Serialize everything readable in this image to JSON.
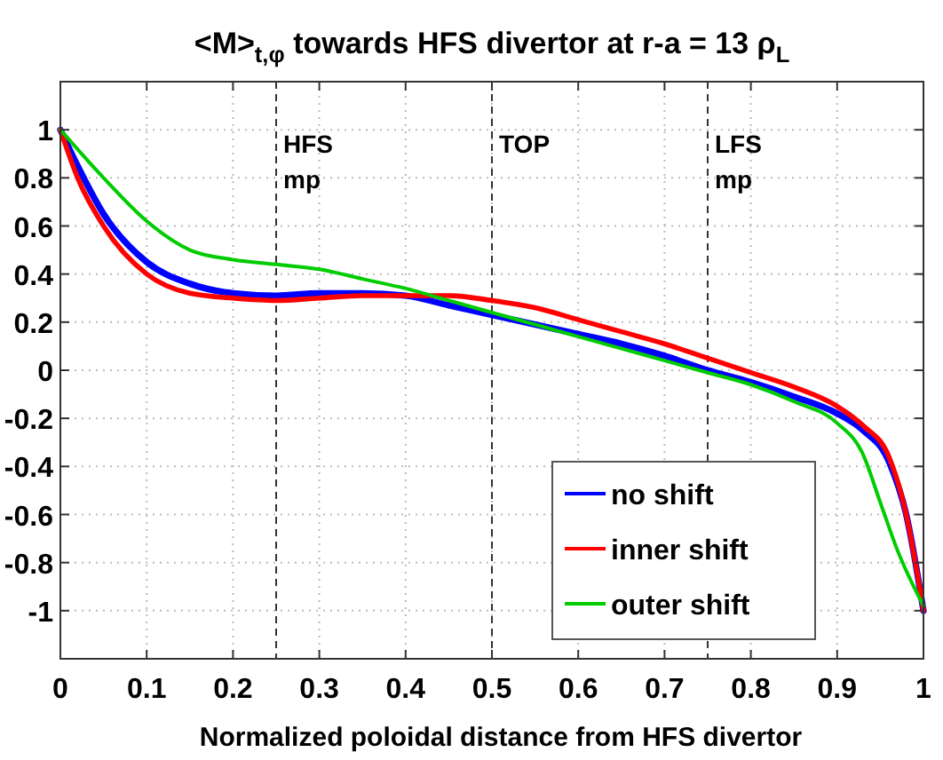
{
  "chart_data": {
    "type": "line",
    "title": "<M>$_{t,φ}$ towards HFS divertor at r-a = 13 ρ$_{L}$",
    "xlabel": "Normalized poloidal distance from HFS divertor",
    "xlim": [
      0,
      1
    ],
    "xticks": [
      0,
      0.1,
      0.2,
      0.3,
      0.4,
      0.5,
      0.6,
      0.7,
      0.8,
      0.9,
      1
    ],
    "ylim": [
      -1.2,
      1.2
    ],
    "yticks": [
      -1,
      -0.8,
      -0.6,
      -0.4,
      -0.2,
      0,
      0.2,
      0.4,
      0.6,
      0.8,
      1
    ],
    "grid": true,
    "legend": "bottom right",
    "line_style": "solid",
    "ref_lines": [
      {
        "axis": "x",
        "value": 0.25,
        "label": "HFS\nmp",
        "line_style": "dashed"
      },
      {
        "axis": "x",
        "value": 0.5,
        "label": "TOP",
        "line_style": "dashed"
      },
      {
        "axis": "x",
        "value": 0.75,
        "label": "LFS\nmp",
        "line_style": "dashed"
      }
    ],
    "series": [
      {
        "name": "no shift",
        "color": "#0000ff",
        "x": [
          0,
          0.02,
          0.05,
          0.1,
          0.15,
          0.2,
          0.25,
          0.3,
          0.35,
          0.4,
          0.45,
          0.5,
          0.55,
          0.6,
          0.65,
          0.7,
          0.75,
          0.8,
          0.85,
          0.9,
          0.93,
          0.96,
          0.98,
          1
        ],
        "values": [
          1,
          0.85,
          0.65,
          0.45,
          0.36,
          0.32,
          0.31,
          0.32,
          0.32,
          0.31,
          0.27,
          0.23,
          0.19,
          0.15,
          0.11,
          0.06,
          0,
          -0.05,
          -0.11,
          -0.18,
          -0.25,
          -0.38,
          -0.6,
          -1
        ]
      },
      {
        "name": "inner shift",
        "color": "#ff0000",
        "x": [
          0,
          0.02,
          0.05,
          0.1,
          0.15,
          0.2,
          0.25,
          0.3,
          0.35,
          0.4,
          0.45,
          0.5,
          0.55,
          0.6,
          0.65,
          0.7,
          0.75,
          0.8,
          0.85,
          0.9,
          0.93,
          0.96,
          0.98,
          1
        ],
        "values": [
          1,
          0.8,
          0.6,
          0.4,
          0.32,
          0.3,
          0.29,
          0.3,
          0.31,
          0.31,
          0.31,
          0.29,
          0.26,
          0.21,
          0.16,
          0.11,
          0.05,
          -0.01,
          -0.07,
          -0.15,
          -0.23,
          -0.36,
          -0.6,
          -1
        ]
      },
      {
        "name": "outer shift",
        "color": "#00cc00",
        "x": [
          0,
          0.05,
          0.1,
          0.15,
          0.2,
          0.25,
          0.3,
          0.35,
          0.4,
          0.45,
          0.5,
          0.55,
          0.6,
          0.65,
          0.7,
          0.75,
          0.8,
          0.85,
          0.9,
          0.93,
          0.95,
          0.97,
          1
        ],
        "values": [
          1,
          0.8,
          0.62,
          0.5,
          0.46,
          0.44,
          0.42,
          0.38,
          0.34,
          0.29,
          0.24,
          0.19,
          0.14,
          0.09,
          0.04,
          -0.01,
          -0.06,
          -0.13,
          -0.22,
          -0.35,
          -0.55,
          -0.75,
          -0.98
        ]
      }
    ]
  }
}
